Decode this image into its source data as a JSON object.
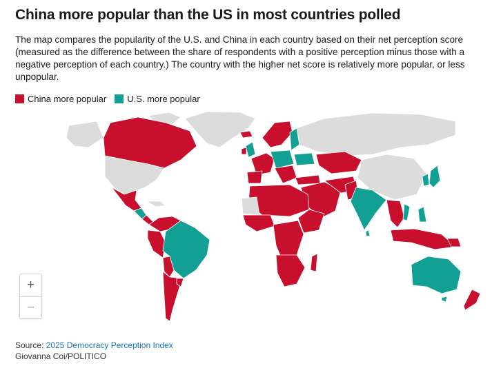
{
  "title": "China more popular than the US in most countries polled",
  "subtitle": "The map compares the popularity of the U.S. and China in each country based on their net perception score (measured as the difference between the share of respondents with a positive perception minus those with a negative perception of each country.) The country with the higher net score is relatively more popular, or less unpopular.",
  "legend": [
    {
      "label": "China more popular",
      "color": "#c8102e"
    },
    {
      "label": "U.S. more popular",
      "color": "#13a094"
    }
  ],
  "colors": {
    "china": "#c8102e",
    "us": "#13a094",
    "no_data": "#dcdcdc"
  },
  "zoom": {
    "in_label": "+",
    "out_label": "−"
  },
  "source": {
    "prefix": "Source: ",
    "link_text": "2025 Democracy Perception Index",
    "credit": "Giovanna Coi/POLITICO"
  }
}
